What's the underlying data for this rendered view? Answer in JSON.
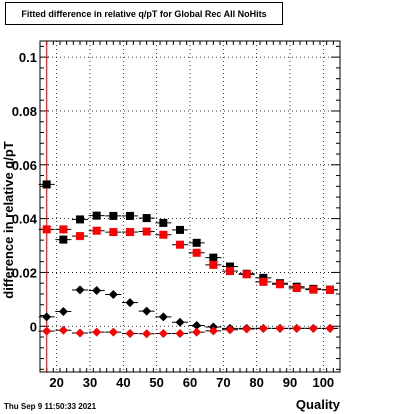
{
  "title": "Fitted difference in relative q/pT for Global Rec All NoHits",
  "xlabel": "Quality",
  "ylabel": "difference in relative q/pT",
  "footer": "Thu Sep  9 11:50:33 2021",
  "chart_data": {
    "type": "scatter",
    "title": "Fitted difference in relative q/pT for Global Rec All NoHits",
    "xlabel": "Quality",
    "ylabel": "difference in relative q/pT",
    "xlim": [
      15,
      105
    ],
    "ylim": [
      -0.017,
      0.106
    ],
    "x_ticks": [
      20,
      30,
      40,
      50,
      60,
      70,
      80,
      90,
      100
    ],
    "y_ticks": [
      0,
      0.02,
      0.04,
      0.06,
      0.08,
      0.1
    ],
    "y_tick_labels": [
      "0",
      "0.02",
      "0.04",
      "0.06",
      "0.08",
      "0.1"
    ],
    "grid": true,
    "reference_line_x": 17,
    "series": [
      {
        "marker": "square",
        "color": "#000000",
        "x": [
          17,
          22,
          27,
          32,
          37,
          42,
          47,
          52,
          57,
          62,
          67,
          72,
          77,
          82,
          87,
          92,
          97,
          102
        ],
        "y": [
          0.0527,
          0.0322,
          0.0397,
          0.0411,
          0.041,
          0.041,
          0.0402,
          0.0384,
          0.0358,
          0.031,
          0.0255,
          0.0222,
          0.0195,
          0.018,
          0.016,
          0.0147,
          0.0139,
          0.0136
        ]
      },
      {
        "marker": "square",
        "color": "#ff0000",
        "x": [
          17,
          22,
          27,
          32,
          37,
          42,
          47,
          52,
          57,
          62,
          67,
          72,
          77,
          82,
          87,
          92,
          97,
          102
        ],
        "y": [
          0.036,
          0.036,
          0.0335,
          0.0355,
          0.035,
          0.035,
          0.0352,
          0.034,
          0.0303,
          0.0273,
          0.0228,
          0.0205,
          0.0193,
          0.0165,
          0.0156,
          0.0142,
          0.0136,
          0.0135
        ]
      },
      {
        "marker": "diamond",
        "color": "#000000",
        "x": [
          17,
          22,
          27,
          32,
          37,
          42,
          47,
          52,
          57,
          62,
          67,
          72,
          77,
          82,
          87,
          92,
          97,
          102
        ],
        "y": [
          0.0035,
          0.0055,
          0.0135,
          0.0133,
          0.0118,
          0.0088,
          0.0056,
          0.0035,
          0.0015,
          0.0003,
          -0.0003,
          -0.0008,
          -0.0008,
          -0.0008,
          -0.0008,
          -0.0008,
          -0.0008,
          -0.0008
        ]
      },
      {
        "marker": "diamond",
        "color": "#ff0000",
        "x": [
          17,
          22,
          27,
          32,
          37,
          42,
          47,
          52,
          57,
          62,
          67,
          72,
          77,
          82,
          87,
          92,
          97,
          102
        ],
        "y": [
          -0.0018,
          -0.0015,
          -0.0025,
          -0.0022,
          -0.0022,
          -0.0027,
          -0.0028,
          -0.0027,
          -0.0027,
          -0.0022,
          -0.0017,
          -0.0013,
          -0.001,
          -0.0008,
          -0.0008,
          -0.0008,
          -0.0008,
          -0.0008
        ]
      }
    ]
  }
}
